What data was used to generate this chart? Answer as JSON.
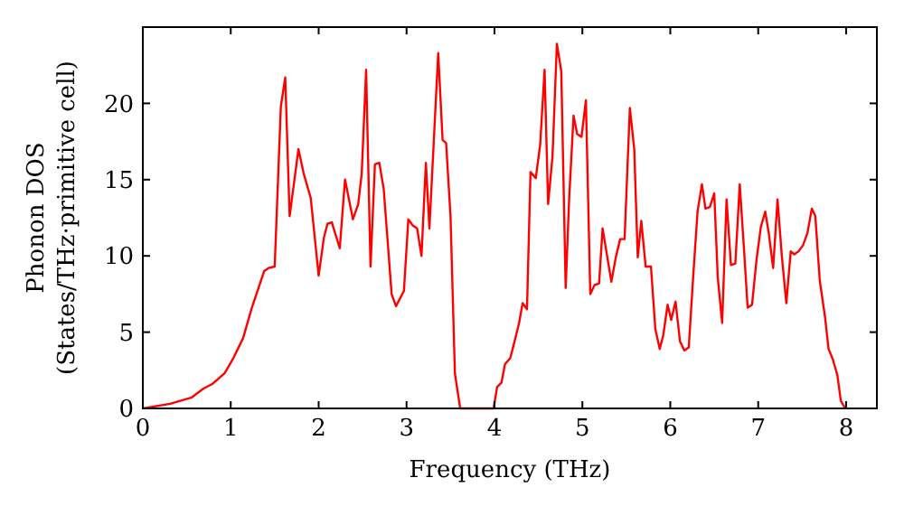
{
  "chart_data": {
    "type": "line",
    "xlabel": "Frequency (THz)",
    "ylabel": "Phonon DOS\n(States/THz·primitive cell)",
    "xlim": [
      0,
      8.35
    ],
    "ylim": [
      0,
      25
    ],
    "xticks": [
      0,
      1,
      2,
      3,
      4,
      5,
      6,
      7,
      8
    ],
    "yticks": [
      0,
      5,
      10,
      15,
      20
    ],
    "grid": false,
    "series": [
      {
        "color": "#ff0000",
        "x": [
          0,
          0.31,
          0.55,
          0.69,
          0.79,
          0.93,
          1.03,
          1.14,
          1.24,
          1.31,
          1.38,
          1.43,
          1.5,
          1.57,
          1.62,
          1.67,
          1.77,
          1.83,
          1.91,
          2.0,
          2.06,
          2.1,
          2.15,
          2.24,
          2.3,
          2.39,
          2.45,
          2.49,
          2.54,
          2.59,
          2.64,
          2.69,
          2.74,
          2.83,
          2.88,
          2.97,
          3.02,
          3.07,
          3.12,
          3.17,
          3.22,
          3.26,
          3.36,
          3.41,
          3.45,
          3.5,
          3.55,
          3.61,
          3.99,
          4.03,
          4.08,
          4.12,
          4.18,
          4.22,
          4.28,
          4.32,
          4.37,
          4.41,
          4.47,
          4.52,
          4.57,
          4.61,
          4.66,
          4.71,
          4.76,
          4.81,
          4.85,
          4.9,
          4.94,
          4.99,
          5.04,
          5.09,
          5.14,
          5.19,
          5.23,
          5.33,
          5.38,
          5.43,
          5.48,
          5.54,
          5.59,
          5.63,
          5.67,
          5.72,
          5.78,
          5.83,
          5.88,
          5.92,
          5.97,
          6.01,
          6.06,
          6.11,
          6.16,
          6.21,
          6.26,
          6.31,
          6.36,
          6.4,
          6.45,
          6.5,
          6.54,
          6.59,
          6.64,
          6.69,
          6.74,
          6.79,
          6.84,
          6.88,
          6.93,
          6.98,
          7.03,
          7.08,
          7.12,
          7.17,
          7.22,
          7.27,
          7.32,
          7.37,
          7.41,
          7.46,
          7.51,
          7.56,
          7.61,
          7.65,
          7.7,
          7.76,
          7.8,
          7.85,
          7.9,
          7.94,
          7.99
        ],
        "values": [
          0,
          0.3,
          0.7,
          1.3,
          1.6,
          2.3,
          3.3,
          4.6,
          6.6,
          7.8,
          9.0,
          9.2,
          9.3,
          19.8,
          21.7,
          12.6,
          17.0,
          15.4,
          13.8,
          8.7,
          11.2,
          12.1,
          12.2,
          10.5,
          15.0,
          12.4,
          13.4,
          15.4,
          22.2,
          9.3,
          16.0,
          16.1,
          14.4,
          7.5,
          6.7,
          7.7,
          12.4,
          12.0,
          11.8,
          10.0,
          16.1,
          11.8,
          23.3,
          17.6,
          17.4,
          12.6,
          2.3,
          0,
          0,
          1.4,
          1.7,
          2.9,
          3.3,
          4.2,
          5.6,
          6.9,
          6.5,
          15.5,
          15.1,
          17.3,
          22.2,
          13.4,
          16.5,
          23.9,
          22.1,
          7.9,
          13.8,
          19.2,
          18.0,
          17.8,
          20.2,
          7.5,
          8.1,
          8.2,
          11.8,
          8.3,
          9.9,
          11.1,
          11.1,
          19.7,
          17.0,
          9.9,
          12.3,
          9.3,
          9.3,
          5.2,
          3.9,
          4.8,
          6.8,
          5.8,
          7.0,
          4.4,
          3.8,
          4.0,
          8.6,
          12.9,
          14.7,
          13.1,
          13.2,
          14.1,
          8.6,
          5.6,
          13.7,
          9.4,
          9.5,
          14.7,
          10.3,
          6.6,
          6.8,
          9.7,
          11.9,
          12.9,
          11.5,
          9.2,
          13.7,
          9.9,
          6.9,
          10.3,
          10.1,
          10.3,
          10.7,
          11.5,
          13.1,
          12.6,
          8.4,
          6.0,
          3.9,
          3.2,
          2.2,
          0.5,
          0
        ]
      }
    ]
  }
}
